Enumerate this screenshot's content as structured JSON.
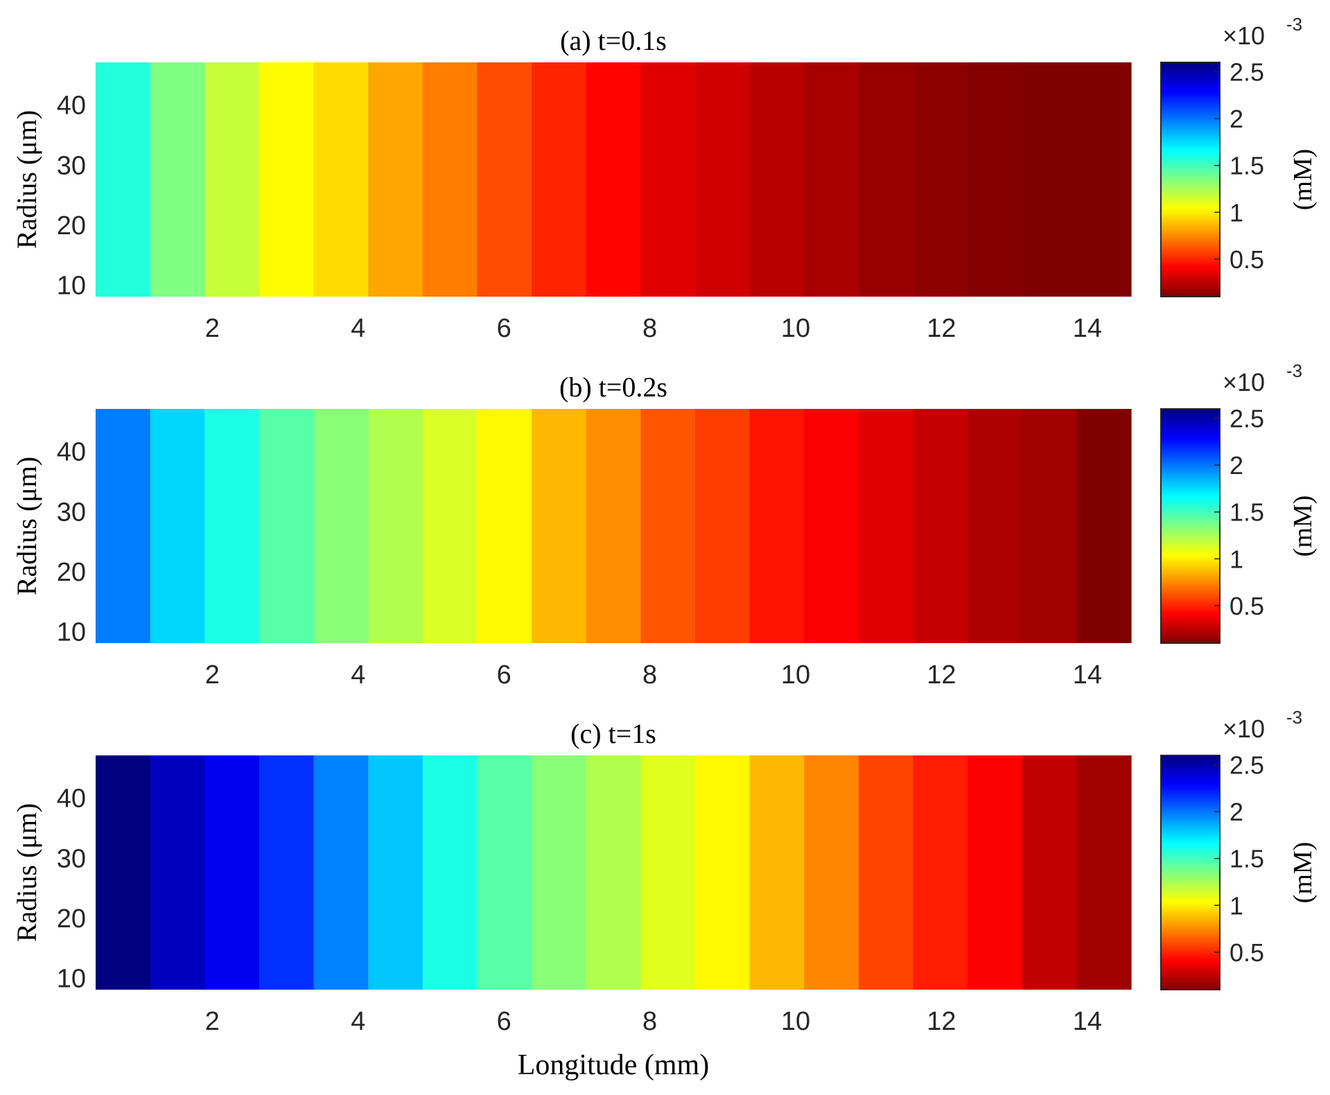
{
  "chart_data": [
    {
      "type": "heatmap",
      "title": "(a) t=0.1s",
      "ylabel": "Radius (μm)",
      "xlabel": "",
      "x": [
        0.79,
        1.58,
        2.37,
        3.16,
        3.95,
        4.74,
        5.53,
        6.32,
        7.11,
        7.89,
        8.68,
        9.47,
        10.26,
        11.05,
        11.84,
        12.63,
        13.42,
        14.21,
        15.0
      ],
      "values": [
        1.58,
        1.35,
        1.18,
        1.03,
        0.95,
        0.82,
        0.72,
        0.6,
        0.5,
        0.42,
        0.34,
        0.3,
        0.24,
        0.2,
        0.16,
        0.13,
        0.11,
        0.08,
        0.06
      ],
      "xlim": [
        0.4,
        14.6
      ],
      "ylim": [
        8,
        47
      ],
      "xticks": [
        "2",
        "4",
        "6",
        "8",
        "10",
        "12",
        "14"
      ],
      "yticks": [
        "10",
        "20",
        "30",
        "40"
      ],
      "colorbar": {
        "label": "(mM)",
        "exponent": "×10",
        "exponent_power": "-3",
        "range": [
          0.1,
          2.6
        ],
        "ticks": [
          "0.5",
          "1",
          "1.5",
          "2",
          "2.5"
        ]
      }
    },
    {
      "type": "heatmap",
      "title": "(b) t=0.2s",
      "ylabel": "Radius (μm)",
      "xlabel": "",
      "x": [
        0.79,
        1.58,
        2.37,
        3.16,
        3.95,
        4.74,
        5.53,
        6.32,
        7.11,
        7.89,
        8.68,
        9.47,
        10.26,
        11.05,
        11.84,
        12.63,
        13.42,
        14.21,
        15.0
      ],
      "values": [
        1.98,
        1.76,
        1.6,
        1.45,
        1.33,
        1.23,
        1.13,
        1.02,
        0.86,
        0.76,
        0.62,
        0.56,
        0.46,
        0.4,
        0.34,
        0.27,
        0.21,
        0.18,
        0.1
      ],
      "xlim": [
        0.4,
        14.6
      ],
      "ylim": [
        8,
        47
      ],
      "xticks": [
        "2",
        "4",
        "6",
        "8",
        "10",
        "12",
        "14"
      ],
      "yticks": [
        "10",
        "20",
        "30",
        "40"
      ],
      "colorbar": {
        "label": "(mM)",
        "exponent": "×10",
        "exponent_power": "-3",
        "range": [
          0.1,
          2.6
        ],
        "ticks": [
          "0.5",
          "1",
          "1.5",
          "2",
          "2.5"
        ]
      }
    },
    {
      "type": "heatmap",
      "title": "(c) t=1s",
      "ylabel": "Radius (μm)",
      "xlabel": "Longitude (mm)",
      "x": [
        0.79,
        1.58,
        2.37,
        3.16,
        3.95,
        4.74,
        5.53,
        6.32,
        7.11,
        7.89,
        8.68,
        9.47,
        10.26,
        11.05,
        11.84,
        12.63,
        13.42,
        14.21,
        15.0
      ],
      "values": [
        2.6,
        2.45,
        2.33,
        2.17,
        1.97,
        1.8,
        1.6,
        1.45,
        1.33,
        1.23,
        1.11,
        1.02,
        0.86,
        0.74,
        0.58,
        0.48,
        0.4,
        0.26,
        0.18
      ],
      "xlim": [
        0.4,
        14.6
      ],
      "ylim": [
        8,
        47
      ],
      "xticks": [
        "2",
        "4",
        "6",
        "8",
        "10",
        "12",
        "14"
      ],
      "yticks": [
        "10",
        "20",
        "30",
        "40"
      ],
      "colorbar": {
        "label": "(mM)",
        "exponent": "×10",
        "exponent_power": "-3",
        "range": [
          0.1,
          2.6
        ],
        "ticks": [
          "0.5",
          "1",
          "1.5",
          "2",
          "2.5"
        ]
      }
    }
  ]
}
